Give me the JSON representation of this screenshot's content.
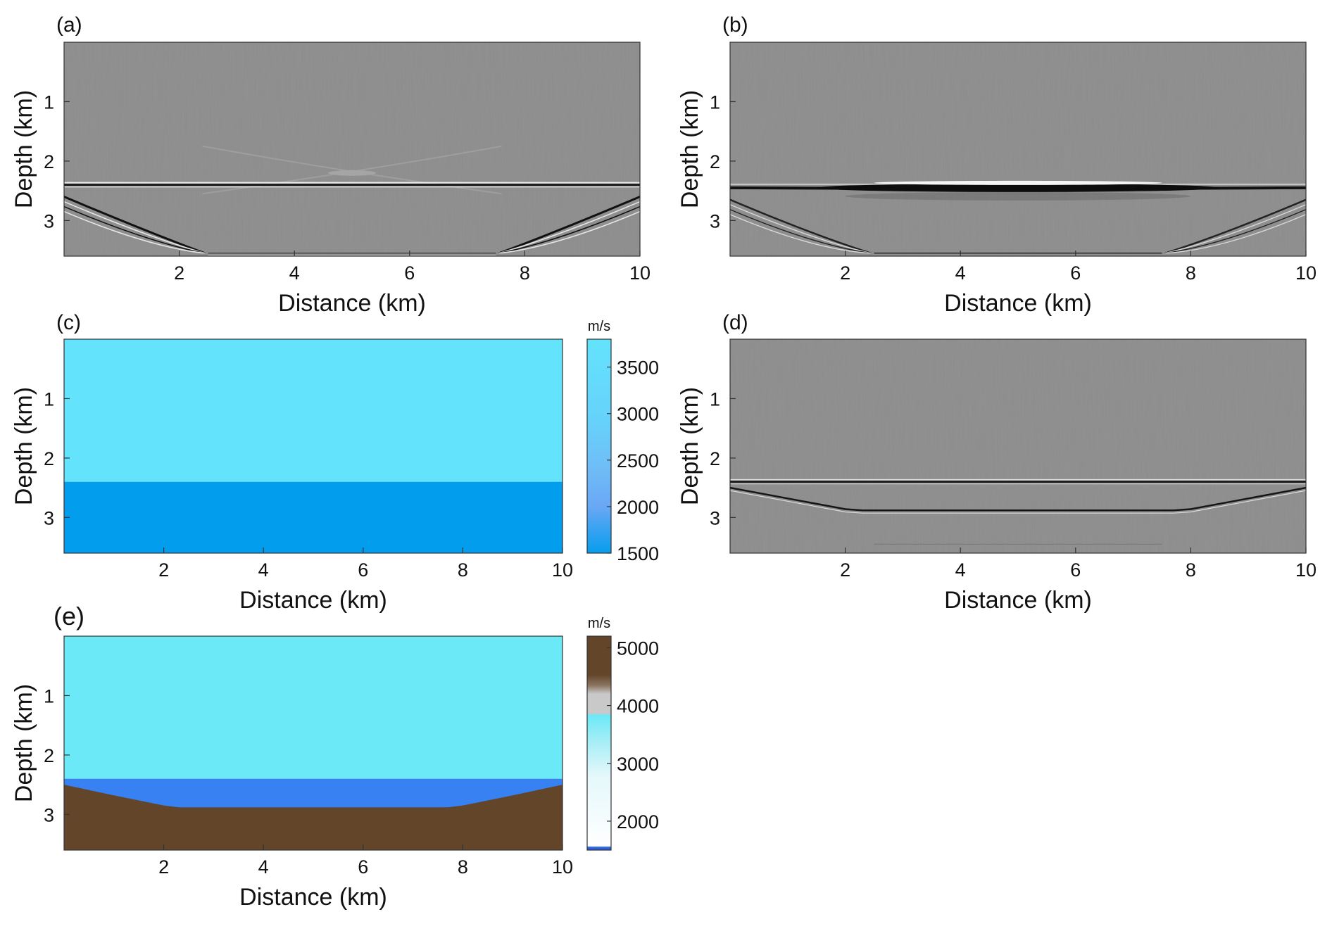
{
  "chart_data": [
    {
      "panel": "(a)",
      "type": "heatmap",
      "colormap": "grayscale seismic image",
      "xlabel": "Distance (km)",
      "ylabel": "Depth (km)",
      "xlim": [
        0,
        10
      ],
      "ylim": [
        3.6,
        0
      ],
      "xticks": [
        2,
        4,
        6,
        8,
        10
      ],
      "yticks": [
        1,
        2,
        3
      ],
      "features": {
        "reflector_depth": 2.4,
        "reflector_strength": "strong",
        "artifact": "X-shaped crossing near x=5 km, depth 2.2 km",
        "edge_curves": "steep curved artifacts at both edges bending to 3.55 km depth"
      }
    },
    {
      "panel": "(b)",
      "type": "heatmap",
      "colormap": "grayscale seismic image",
      "xlabel": "Distance (km)",
      "ylabel": "Depth (km)",
      "xlim": [
        0,
        10
      ],
      "ylim": [
        3.6,
        0
      ],
      "xticks": [
        2,
        4,
        6,
        8,
        10
      ],
      "yticks": [
        1,
        2,
        3
      ],
      "features": {
        "reflector_depth": 2.45,
        "reflector_strength": "very strong, thick in center",
        "edge_curves": "curved artifacts at both edges bending to 3.55 km depth"
      }
    },
    {
      "panel": "(c)",
      "type": "heatmap",
      "colormap": "velocity",
      "xlabel": "Distance (km)",
      "ylabel": "Depth (km)",
      "xlim": [
        0,
        10
      ],
      "ylim": [
        3.6,
        0
      ],
      "xticks": [
        2,
        4,
        6,
        8,
        10
      ],
      "yticks": [
        1,
        2,
        3
      ],
      "layers": [
        {
          "top_depth": 0,
          "bottom_depth": 2.4,
          "velocity": 3500,
          "color": "#63e3fc"
        },
        {
          "top_depth": 2.4,
          "bottom_depth": 3.6,
          "velocity": 1500,
          "color": "#039ded"
        }
      ],
      "colorbar": {
        "unit": "m/s",
        "range": [
          1500,
          3800
        ],
        "ticks": [
          1500,
          2000,
          2500,
          3000,
          3500
        ],
        "tick_labels": [
          "1500",
          "2000",
          "2500",
          "3000",
          "3500"
        ]
      }
    },
    {
      "panel": "(d)",
      "type": "heatmap",
      "colormap": "grayscale seismic image",
      "xlabel": "Distance (km)",
      "ylabel": "Depth (km)",
      "xlim": [
        0,
        10
      ],
      "ylim": [
        3.6,
        0
      ],
      "xticks": [
        2,
        4,
        6,
        8,
        10
      ],
      "yticks": [
        1,
        2,
        3
      ],
      "features": {
        "reflector_depth": 2.4,
        "second_reflector": "curved interface from 2.5 km at edges to 2.9 km between x=2 and x=8 km"
      }
    },
    {
      "panel": "(e)",
      "type": "heatmap",
      "colormap": "velocity",
      "xlabel": "Distance (km)",
      "ylabel": "Depth (km)",
      "xlim": [
        0,
        10
      ],
      "ylim": [
        3.6,
        0
      ],
      "xticks": [
        2,
        4,
        6,
        8,
        10
      ],
      "yticks": [
        1,
        2,
        3
      ],
      "layers": [
        {
          "top_depth": 0,
          "bottom_depth": 2.4,
          "velocity": 3500,
          "color": "#6be9f7"
        },
        {
          "top_depth": 2.4,
          "bottom_depth": "curved interface",
          "velocity": 1500,
          "color": "#3881f2"
        },
        {
          "top_depth": "curved interface",
          "bottom_depth": 3.6,
          "velocity": 5200,
          "color": "#634529"
        }
      ],
      "interface": {
        "x": [
          0,
          1,
          2,
          2.3,
          7.7,
          8,
          9,
          10
        ],
        "depth": [
          2.5,
          2.68,
          2.85,
          2.88,
          2.88,
          2.85,
          2.68,
          2.5
        ]
      },
      "colorbar": {
        "unit": "m/s",
        "range": [
          1500,
          5200
        ],
        "ticks": [
          2000,
          3000,
          4000,
          5000
        ],
        "tick_labels": [
          "2000",
          "3000",
          "4000",
          "5000"
        ]
      }
    }
  ]
}
